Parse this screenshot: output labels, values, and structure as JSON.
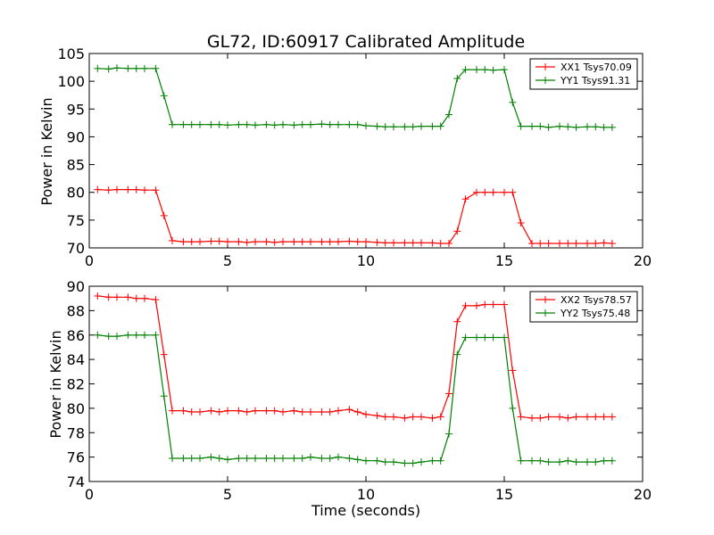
{
  "chart_data": [
    {
      "type": "line",
      "title": "GL72, ID:60917 Calibrated Amplitude",
      "xlabel": "",
      "ylabel": "Power in Kelvin",
      "xlim": [
        0,
        20
      ],
      "ylim": [
        70,
        105
      ],
      "xticks": [
        0,
        5,
        10,
        15,
        20
      ],
      "yticks": [
        70,
        75,
        80,
        85,
        90,
        95,
        100,
        105
      ],
      "legend_position": "top-right",
      "series": [
        {
          "name": "XX1 Tsys70.09",
          "color": "#ff0000",
          "x": [
            0.3,
            0.7,
            1.0,
            1.4,
            1.7,
            2.0,
            2.4,
            2.7,
            3.0,
            3.4,
            3.7,
            4.0,
            4.4,
            4.7,
            5.0,
            5.4,
            5.7,
            6.0,
            6.4,
            6.7,
            7.0,
            7.4,
            7.7,
            8.0,
            8.4,
            8.7,
            9.0,
            9.4,
            9.7,
            10.0,
            10.4,
            10.7,
            11.0,
            11.4,
            11.7,
            12.0,
            12.4,
            12.7,
            13.0,
            13.3,
            13.6,
            14.0,
            14.3,
            14.6,
            15.0,
            15.3,
            15.6,
            16.0,
            16.3,
            16.6,
            17.0,
            17.3,
            17.6,
            18.0,
            18.3,
            18.6,
            18.9
          ],
          "y": [
            80.5,
            80.4,
            80.5,
            80.5,
            80.5,
            80.4,
            80.4,
            75.8,
            71.3,
            71.1,
            71.1,
            71.1,
            71.2,
            71.2,
            71.1,
            71.1,
            71.0,
            71.1,
            71.1,
            71.0,
            71.1,
            71.1,
            71.1,
            71.1,
            71.1,
            71.1,
            71.1,
            71.2,
            71.1,
            71.1,
            71.0,
            70.9,
            70.9,
            70.9,
            70.9,
            70.9,
            70.9,
            70.8,
            70.8,
            73.0,
            78.8,
            80.0,
            80.0,
            80.0,
            80.0,
            80.0,
            74.5,
            70.8,
            70.8,
            70.8,
            70.8,
            70.8,
            70.8,
            70.8,
            70.8,
            70.9,
            70.8
          ]
        },
        {
          "name": "YY1 Tsys91.31",
          "color": "#008000",
          "x": [
            0.3,
            0.7,
            1.0,
            1.4,
            1.7,
            2.0,
            2.4,
            2.7,
            3.0,
            3.4,
            3.7,
            4.0,
            4.4,
            4.7,
            5.0,
            5.4,
            5.7,
            6.0,
            6.4,
            6.7,
            7.0,
            7.4,
            7.7,
            8.0,
            8.4,
            8.7,
            9.0,
            9.4,
            9.7,
            10.0,
            10.4,
            10.7,
            11.0,
            11.4,
            11.7,
            12.0,
            12.4,
            12.7,
            13.0,
            13.3,
            13.6,
            14.0,
            14.3,
            14.6,
            15.0,
            15.3,
            15.6,
            16.0,
            16.3,
            16.6,
            17.0,
            17.3,
            17.6,
            18.0,
            18.3,
            18.6,
            18.9
          ],
          "y": [
            102.3,
            102.2,
            102.4,
            102.3,
            102.3,
            102.3,
            102.3,
            97.4,
            92.2,
            92.2,
            92.2,
            92.2,
            92.2,
            92.2,
            92.1,
            92.2,
            92.2,
            92.1,
            92.2,
            92.1,
            92.2,
            92.1,
            92.2,
            92.2,
            92.3,
            92.2,
            92.2,
            92.2,
            92.2,
            92.0,
            91.9,
            91.8,
            91.8,
            91.8,
            91.8,
            91.9,
            91.9,
            91.9,
            94.0,
            100.5,
            102.1,
            102.1,
            102.1,
            102.0,
            102.1,
            96.2,
            91.9,
            91.9,
            91.9,
            91.7,
            91.9,
            91.8,
            91.7,
            91.8,
            91.8,
            91.7,
            91.7
          ]
        }
      ]
    },
    {
      "type": "line",
      "title": "",
      "xlabel": "Time (seconds)",
      "ylabel": "Power in Kelvin",
      "xlim": [
        0,
        20
      ],
      "ylim": [
        74,
        90
      ],
      "xticks": [
        0,
        5,
        10,
        15,
        20
      ],
      "yticks": [
        74,
        76,
        78,
        80,
        82,
        84,
        86,
        88,
        90
      ],
      "legend_position": "top-right",
      "series": [
        {
          "name": "XX2 Tsys78.57",
          "color": "#ff0000",
          "x": [
            0.3,
            0.7,
            1.0,
            1.4,
            1.7,
            2.0,
            2.4,
            2.7,
            3.0,
            3.4,
            3.7,
            4.0,
            4.4,
            4.7,
            5.0,
            5.4,
            5.7,
            6.0,
            6.4,
            6.7,
            7.0,
            7.4,
            7.7,
            8.0,
            8.4,
            8.7,
            9.0,
            9.4,
            9.7,
            10.0,
            10.4,
            10.7,
            11.0,
            11.4,
            11.7,
            12.0,
            12.4,
            12.7,
            13.0,
            13.3,
            13.6,
            14.0,
            14.3,
            14.6,
            15.0,
            15.3,
            15.6,
            16.0,
            16.3,
            16.6,
            17.0,
            17.3,
            17.6,
            18.0,
            18.3,
            18.6,
            18.9
          ],
          "y": [
            89.2,
            89.1,
            89.1,
            89.1,
            89.0,
            89.0,
            88.9,
            84.4,
            79.8,
            79.8,
            79.7,
            79.7,
            79.8,
            79.7,
            79.8,
            79.8,
            79.7,
            79.8,
            79.8,
            79.8,
            79.7,
            79.8,
            79.7,
            79.7,
            79.7,
            79.7,
            79.8,
            79.9,
            79.7,
            79.5,
            79.4,
            79.3,
            79.3,
            79.2,
            79.3,
            79.3,
            79.2,
            79.3,
            81.2,
            87.1,
            88.4,
            88.4,
            88.5,
            88.5,
            88.5,
            83.1,
            79.3,
            79.2,
            79.2,
            79.3,
            79.3,
            79.2,
            79.3,
            79.3,
            79.3,
            79.3,
            79.3
          ]
        },
        {
          "name": "YY2 Tsys75.48",
          "color": "#008000",
          "x": [
            0.3,
            0.7,
            1.0,
            1.4,
            1.7,
            2.0,
            2.4,
            2.7,
            3.0,
            3.4,
            3.7,
            4.0,
            4.4,
            4.7,
            5.0,
            5.4,
            5.7,
            6.0,
            6.4,
            6.7,
            7.0,
            7.4,
            7.7,
            8.0,
            8.4,
            8.7,
            9.0,
            9.4,
            9.7,
            10.0,
            10.4,
            10.7,
            11.0,
            11.4,
            11.7,
            12.0,
            12.4,
            12.7,
            13.0,
            13.3,
            13.6,
            14.0,
            14.3,
            14.6,
            15.0,
            15.3,
            15.6,
            16.0,
            16.3,
            16.6,
            17.0,
            17.3,
            17.6,
            18.0,
            18.3,
            18.6,
            18.9
          ],
          "y": [
            86.0,
            85.9,
            85.9,
            86.0,
            86.0,
            86.0,
            86.0,
            81.0,
            75.9,
            75.9,
            75.9,
            75.9,
            76.0,
            75.9,
            75.8,
            75.9,
            75.9,
            75.9,
            75.9,
            75.9,
            75.9,
            75.9,
            75.9,
            76.0,
            75.9,
            75.9,
            76.0,
            75.9,
            75.8,
            75.7,
            75.7,
            75.6,
            75.6,
            75.5,
            75.5,
            75.6,
            75.7,
            75.7,
            77.9,
            84.4,
            85.8,
            85.8,
            85.8,
            85.8,
            85.8,
            80.0,
            75.7,
            75.7,
            75.7,
            75.6,
            75.6,
            75.7,
            75.6,
            75.6,
            75.6,
            75.7,
            75.7
          ]
        }
      ]
    }
  ]
}
